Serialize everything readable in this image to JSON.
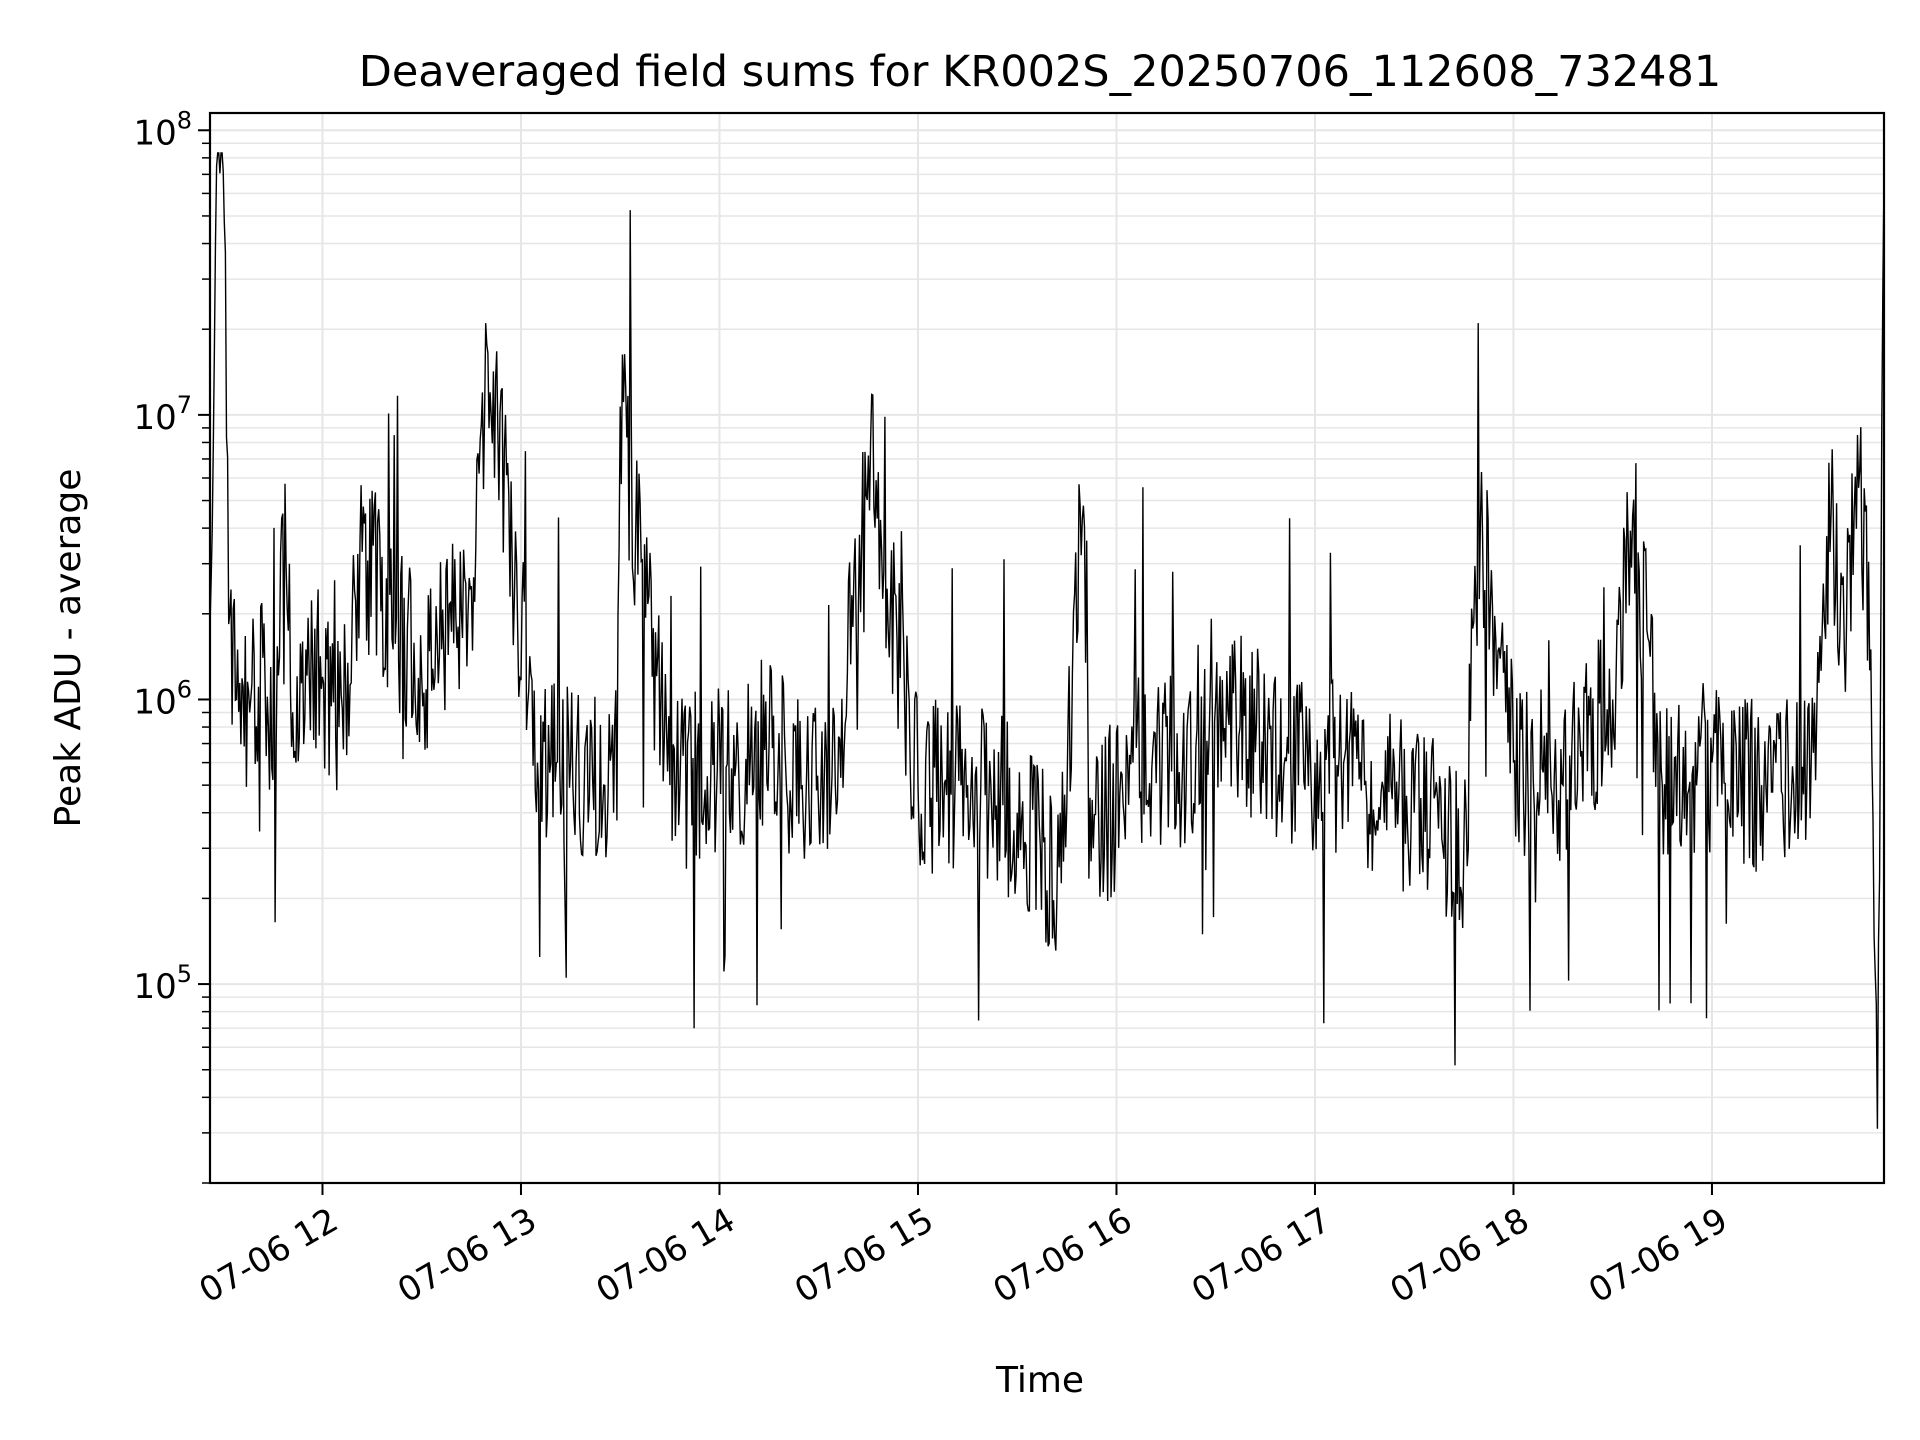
{
  "chart_data": {
    "type": "line",
    "title": "Deaveraged field sums for KR002S_20250706_112608_732481",
    "xlabel": "Time",
    "ylabel": "Peak ADU - average",
    "yscale": "log",
    "xlim": [
      "2025-07-06 11:26",
      "2025-07-06 19:52"
    ],
    "ylim": [
      20000,
      115000000
    ],
    "grid": true,
    "line_color": "#000000",
    "grid_color": "#e6e6e6",
    "x_ticks": [
      {
        "value": "2025-07-06 12:00",
        "label": "07-06 12"
      },
      {
        "value": "2025-07-06 13:00",
        "label": "07-06 13"
      },
      {
        "value": "2025-07-06 14:00",
        "label": "07-06 14"
      },
      {
        "value": "2025-07-06 15:00",
        "label": "07-06 15"
      },
      {
        "value": "2025-07-06 16:00",
        "label": "07-06 16"
      },
      {
        "value": "2025-07-06 17:00",
        "label": "07-06 17"
      },
      {
        "value": "2025-07-06 18:00",
        "label": "07-06 18"
      },
      {
        "value": "2025-07-06 19:00",
        "label": "07-06 19"
      }
    ],
    "y_ticks": [
      {
        "value": 100000,
        "base": "10",
        "exp": "5"
      },
      {
        "value": 1000000,
        "base": "10",
        "exp": "6"
      },
      {
        "value": 10000000,
        "base": "10",
        "exp": "7"
      },
      {
        "value": 100000000,
        "base": "10",
        "exp": "8"
      }
    ],
    "series": [
      {
        "x": [
          "2025-07-06 11:26",
          "2025-07-06 11:28",
          "2025-07-06 11:30",
          "2025-07-06 11:32",
          "2025-07-06 11:34",
          "2025-07-06 11:38",
          "2025-07-06 11:42",
          "2025-07-06 11:46",
          "2025-07-06 11:48",
          "2025-07-06 11:52",
          "2025-07-06 11:55",
          "2025-07-06 12:00",
          "2025-07-06 12:05",
          "2025-07-06 12:12",
          "2025-07-06 12:30",
          "2025-07-06 12:36",
          "2025-07-06 12:42",
          "2025-07-06 12:45",
          "2025-07-06 12:50",
          "2025-07-06 13:05",
          "2025-07-06 13:15",
          "2025-07-06 13:25",
          "2025-07-06 13:28",
          "2025-07-06 13:30",
          "2025-07-06 13:45",
          "2025-07-06 14:05",
          "2025-07-06 14:15",
          "2025-07-06 14:25",
          "2025-07-06 14:35",
          "2025-07-06 14:45",
          "2025-07-06 15:00",
          "2025-07-06 15:15",
          "2025-07-06 15:30",
          "2025-07-06 15:37",
          "2025-07-06 15:42",
          "2025-07-06 15:50",
          "2025-07-06 15:53",
          "2025-07-06 16:05",
          "2025-07-06 16:20",
          "2025-07-06 16:30",
          "2025-07-06 16:45",
          "2025-07-06 17:00",
          "2025-07-06 17:15",
          "2025-07-06 17:30",
          "2025-07-06 17:45",
          "2025-07-06 17:50",
          "2025-07-06 18:00",
          "2025-07-06 18:15",
          "2025-07-06 18:30",
          "2025-07-06 18:36",
          "2025-07-06 18:45",
          "2025-07-06 19:00",
          "2025-07-06 19:15",
          "2025-07-06 19:30",
          "2025-07-06 19:36",
          "2025-07-06 19:40",
          "2025-07-06 19:44",
          "2025-07-06 19:48",
          "2025-07-06 19:50",
          "2025-07-06 19:52"
        ],
        "y": [
          1800000,
          75000000,
          72000000,
          2000000,
          1000000,
          900000,
          1400000,
          700000,
          4500000,
          600000,
          1500000,
          1200000,
          800000,
          3300000,
          1200000,
          1500000,
          2000000,
          2500000,
          16500000,
          600000,
          600000,
          500000,
          400000,
          10700000,
          500000,
          600000,
          700000,
          500000,
          500000,
          7200000,
          500000,
          500000,
          400000,
          300000,
          200000,
          4800000,
          300000,
          600000,
          600000,
          1000000,
          700000,
          600000,
          500000,
          400000,
          300000,
          4200000,
          600000,
          500000,
          1000000,
          4400000,
          500000,
          600000,
          500000,
          600000,
          4500000,
          1500000,
          8500000,
          1500000,
          31000,
          68000000
        ]
      }
    ]
  }
}
